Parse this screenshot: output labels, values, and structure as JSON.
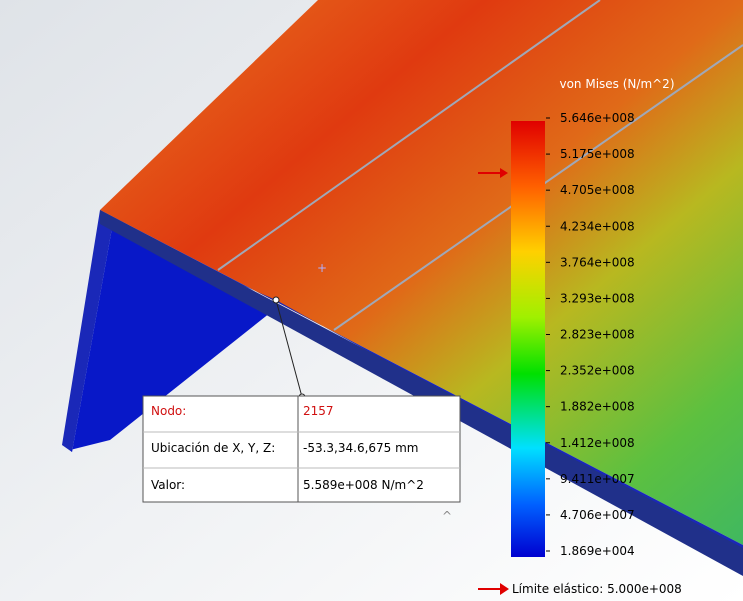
{
  "legend": {
    "title": "von Mises (N/m^2)",
    "labels": [
      "5.646e+008",
      "5.175e+008",
      "4.705e+008",
      "4.234e+008",
      "3.764e+008",
      "3.293e+008",
      "2.823e+008",
      "2.352e+008",
      "1.882e+008",
      "1.412e+008",
      "9.411e+007",
      "4.706e+007",
      "1.869e+004"
    ]
  },
  "tooltip": {
    "rows": [
      [
        "Nodo:",
        "2157"
      ],
      [
        "Ubicación de X, Y, Z:",
        "-53.3,34.6,675 mm"
      ],
      [
        "Valor:",
        "5.589e+008 N/m^2"
      ]
    ]
  },
  "yield_limit": "Límite elástico: 5.000e+008"
}
